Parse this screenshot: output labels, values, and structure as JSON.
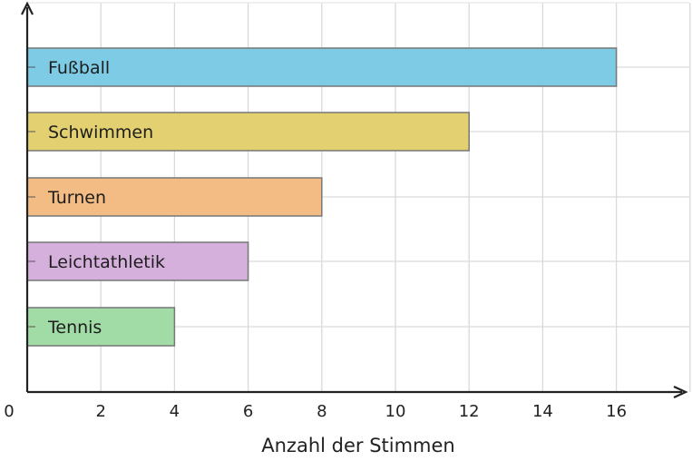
{
  "chart_data": {
    "type": "bar",
    "orientation": "horizontal",
    "categories": [
      "Fußball",
      "Schwimmen",
      "Turnen",
      "Leichtathletik",
      "Tennis"
    ],
    "values": [
      16,
      12,
      8,
      6,
      4
    ],
    "colors": [
      "#7ecbe6",
      "#e3d070",
      "#f2bc84",
      "#d5b0dc",
      "#a1dba5"
    ],
    "xlabel": "Anzahl der Stimmen",
    "ylabel": "",
    "xlim": [
      0,
      18
    ],
    "xticks": [
      "0",
      "2",
      "4",
      "6",
      "8",
      "10",
      "12",
      "14",
      "16"
    ],
    "grid": true,
    "legend": "none"
  }
}
